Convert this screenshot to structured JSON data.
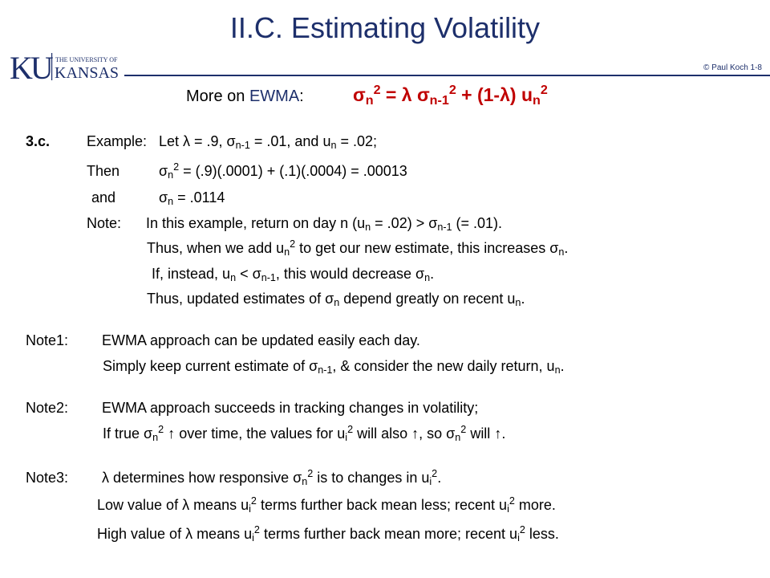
{
  "slide": {
    "title": "II.C.  Estimating Volatility",
    "credit": "© Paul Koch 1-8",
    "logo": {
      "mark": "KU",
      "line1": "THE UNIVERSITY OF",
      "line2": "KANSAS"
    }
  },
  "ewma": {
    "prefix": "More on ",
    "keyword": "EWMA",
    "colon": ":"
  },
  "c": {
    "sigma": "σ",
    "lambda": "λ",
    "sq": "2",
    "n": "n",
    "nm1": "n-1",
    "i": "i",
    "u": "u",
    "up": "↑"
  },
  "t": {
    "eq": " = ",
    "plus": " + ",
    "one_minus": "(1-",
    "paren_close": ")",
    "ex_num": "3.c.",
    "ex_label": "Example:",
    "ex_let": "Let  λ = .9,   σ",
    "ex_mid1": " = .01,   and   u",
    "ex_end": "  = .02;",
    "then_label": "Then",
    "then_rhs": " =  (.9)(.0001) + (.1)(.0004)  =  .00013",
    "and_label": "and",
    "and_rhs": "  =  .0114",
    "note_label": "Note:",
    "note_a": "In this example,   return on  day  n  (u",
    "note_b": " = .02)  >  σ",
    "note_c": " (= .01).",
    "note_l2a": "Thus, when we add  u",
    "note_l2b": "  to get our new estimate,  this increases  σ",
    "dot": ".",
    "note_l3a": "If, instead,  u",
    "note_l3b": "  <  σ",
    "note_l3c": ",      this would decrease  σ",
    "note_l4a": "Thus, updated estimates of  σ",
    "note_l4b": "  depend greatly on recent u",
    "n1_label": "Note1:",
    "n1_l1": "EWMA approach  can be updated easily  each day.",
    "n1_l2a": "Simply keep current estimate of  σ",
    "n1_l2b": ",  & consider the new daily return, u",
    "n2_label": "Note2:",
    "n2_l1": "EWMA approach  succeeds in tracking  changes in volatility;",
    "n2_l2a": "If true  σ",
    "n2_l2b": " over time,  the values for  u",
    "n2_l2c": "  will also ",
    "n2_l2d": ",  so  σ",
    "n2_l2e": "  will  ",
    "n3_label": "Note3:",
    "n3_l1a": "λ  determines how responsive  σ",
    "n3_l1b": "  is to changes in  u",
    "n3_low_a": "Low  value of  λ means  u",
    "n3_low_b": "  terms further back mean less;     recent  u",
    "n3_low_c": "  more.",
    "n3_high_a": "High value of  λ means  u",
    "n3_high_b": "  terms further back mean more;  recent  u",
    "n3_high_c": "  less."
  },
  "colors": {
    "title": "#1d2f6b",
    "formula": "#c00000",
    "rule": "#1d2f6b",
    "logo_red": "#c8102e",
    "logo_blue": "#1d2f6b"
  }
}
